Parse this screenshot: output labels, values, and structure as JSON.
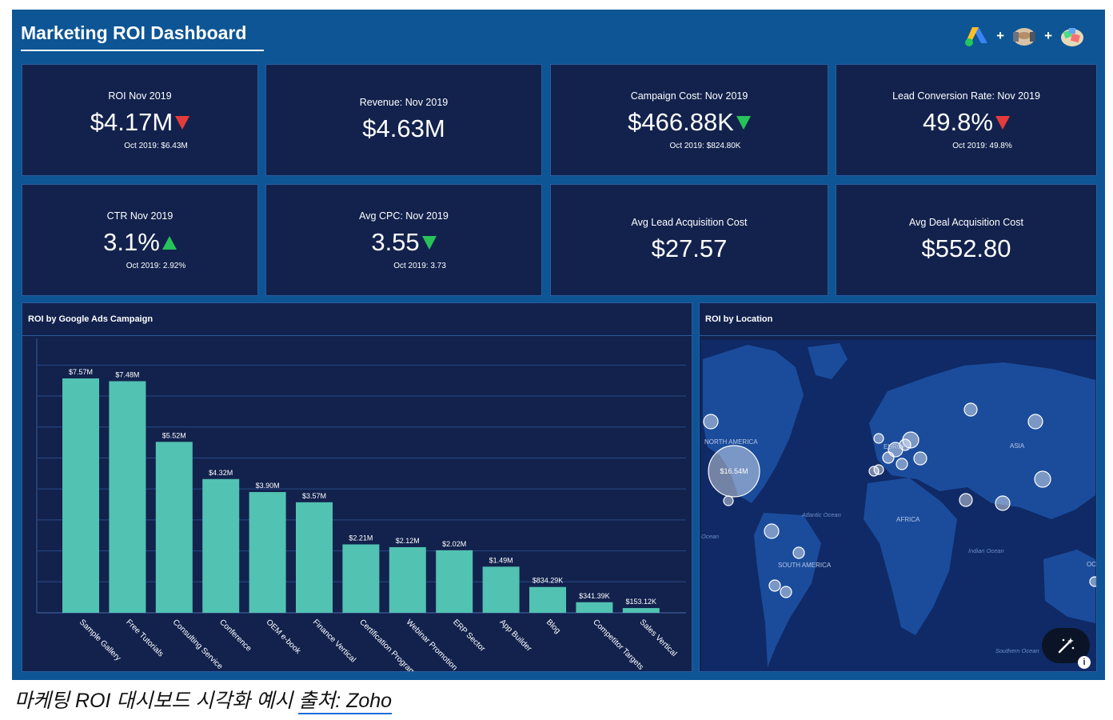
{
  "header": {
    "title": "Marketing ROI Dashboard",
    "logos": [
      {
        "icon": "google-ads-logo-icon"
      },
      {
        "icon": "handshake-logo-icon"
      },
      {
        "icon": "crm-logo-icon"
      }
    ],
    "plus": "+"
  },
  "kpis": [
    {
      "label": "ROI Nov 2019",
      "value": "$4.17M",
      "trend": "down",
      "trend_color": "#e53b3b",
      "prev": "Oct 2019: $6.43M"
    },
    {
      "label": "Revenue: Nov 2019",
      "value": "$4.63M",
      "trend": "none",
      "prev": ""
    },
    {
      "label": "Campaign Cost: Nov 2019",
      "value": "$466.88K",
      "trend": "down",
      "trend_color": "#27c35a",
      "prev": "Oct 2019: $824.80K"
    },
    {
      "label": "Lead Conversion Rate: Nov 2019",
      "value": "49.8%",
      "trend": "down",
      "trend_color": "#e53b3b",
      "prev": "Oct 2019: 49.8%"
    },
    {
      "label": "CTR Nov 2019",
      "value": "3.1%",
      "trend": "up",
      "trend_color": "#27c35a",
      "prev": "Oct 2019: 2.92%"
    },
    {
      "label": "Avg CPC: Nov 2019",
      "value": "3.55",
      "trend": "down",
      "trend_color": "#27c35a",
      "prev": "Oct 2019: 3.73"
    },
    {
      "label": "Avg Lead Acquisition Cost",
      "value": "$27.57",
      "trend": "none",
      "prev": ""
    },
    {
      "label": "Avg Deal Acquisition Cost",
      "value": "$552.80",
      "trend": "none",
      "prev": ""
    }
  ],
  "campaign_panel": {
    "title": "ROI by Google Ads Campaign"
  },
  "chart_data": {
    "type": "bar",
    "categories": [
      "Sample Gallery",
      "Free Tutorials",
      "Consulting Service",
      "Conference",
      "OEM e-book",
      "Finance Vertical",
      "Certification Program",
      "Webinar Promotion",
      "ERP Sector",
      "App Builder",
      "Blog",
      "Competitor Targets",
      "Sales Vertical"
    ],
    "values": [
      7.57,
      7.48,
      5.52,
      4.32,
      3.9,
      3.57,
      2.21,
      2.12,
      2.02,
      1.49,
      0.83429,
      0.34139,
      0.15312
    ],
    "data_labels": [
      "$7.57M",
      "$7.48M",
      "$5.52M",
      "$4.32M",
      "$3.90M",
      "$3.57M",
      "$2.21M",
      "$2.12M",
      "$2.02M",
      "$1.49M",
      "$834.29K",
      "$341.39K",
      "$153.12K"
    ],
    "ylim": [
      0,
      8.5
    ],
    "bar_color": "#52c2b2",
    "grid": true,
    "title": "ROI by Google Ads Campaign",
    "xlabel": "",
    "ylabel": ""
  },
  "map_panel": {
    "title": "ROI by Location",
    "regions": [
      "NORTH AMERICA",
      "SOUTH AMERICA",
      "EUROPE",
      "AFRICA",
      "ASIA",
      "OCEA"
    ],
    "oceans": [
      "Atlantic Ocean",
      "Indian Ocean",
      "Southern Ocean",
      "Ocean"
    ],
    "highlight_value": "$16.54M",
    "colors": {
      "ocean": "#0f2a66",
      "land": "#1b4c9c",
      "bubble": "rgba(255,255,255,0.45)"
    }
  },
  "caption": {
    "text": "마케팅 ROI 대시보드 시각화 예시 ",
    "link_text": "출처: Zoho",
    "link_color": "#1a6bd8"
  }
}
